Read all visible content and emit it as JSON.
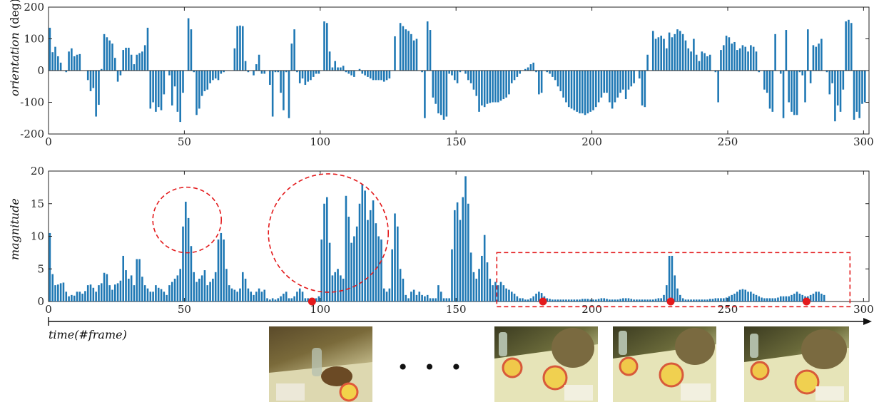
{
  "chart_data": [
    {
      "type": "bar",
      "ylabel_italic": "orientation",
      "ylabel_unit": "(deg)",
      "xlim": [
        0,
        302
      ],
      "ylim": [
        -200,
        200
      ],
      "xticks": [
        0,
        50,
        100,
        150,
        200,
        250,
        300
      ],
      "yticks": [
        -200,
        -100,
        0,
        100,
        200
      ],
      "bar_color": "#1f78b4",
      "values": [
        135,
        58,
        75,
        45,
        25,
        0,
        -5,
        60,
        70,
        45,
        50,
        52,
        0,
        0,
        -30,
        -65,
        -55,
        -145,
        -108,
        5,
        115,
        105,
        95,
        85,
        40,
        -35,
        -15,
        65,
        72,
        72,
        50,
        20,
        50,
        55,
        60,
        80,
        135,
        -120,
        -100,
        -130,
        -115,
        -125,
        -75,
        0,
        -15,
        -110,
        -50,
        -130,
        -162,
        -70,
        0,
        165,
        130,
        -5,
        -140,
        -120,
        -80,
        -65,
        -60,
        -40,
        -30,
        -25,
        -30,
        -10,
        -5,
        0,
        0,
        0,
        70,
        140,
        142,
        140,
        30,
        -5,
        0,
        -15,
        20,
        50,
        -10,
        -10,
        0,
        -45,
        -145,
        -5,
        -5,
        -70,
        -125,
        -5,
        -150,
        85,
        130,
        -5,
        -40,
        -25,
        -45,
        -35,
        -30,
        -20,
        -10,
        -10,
        0,
        155,
        150,
        60,
        10,
        30,
        10,
        10,
        15,
        -5,
        -10,
        -15,
        -20,
        0,
        5,
        -10,
        -15,
        -20,
        -25,
        -30,
        -30,
        -30,
        -30,
        -35,
        -30,
        -25,
        0,
        108,
        0,
        150,
        140,
        130,
        125,
        115,
        95,
        100,
        0,
        -5,
        -150,
        155,
        128,
        -85,
        -105,
        -135,
        -140,
        -155,
        -145,
        -10,
        -15,
        -30,
        -40,
        -5,
        0,
        -10,
        -30,
        -40,
        -60,
        -80,
        -130,
        -110,
        -115,
        -105,
        -102,
        -100,
        -100,
        -100,
        -95,
        -90,
        -85,
        -75,
        -40,
        -30,
        -20,
        -10,
        0,
        5,
        10,
        20,
        25,
        -5,
        -75,
        -70,
        0,
        -5,
        -10,
        -20,
        -30,
        -50,
        -65,
        -85,
        -100,
        -115,
        -120,
        -125,
        -130,
        -135,
        -135,
        -140,
        -135,
        -130,
        -125,
        -115,
        -100,
        -85,
        -70,
        -70,
        -100,
        -120,
        -100,
        -85,
        -70,
        -60,
        -90,
        -60,
        -50,
        -40,
        0,
        -25,
        -110,
        -115,
        50,
        0,
        125,
        100,
        105,
        110,
        100,
        70,
        120,
        105,
        115,
        130,
        125,
        115,
        95,
        70,
        60,
        100,
        50,
        30,
        60,
        55,
        45,
        50,
        0,
        -5,
        -100,
        65,
        80,
        110,
        105,
        85,
        90,
        65,
        70,
        80,
        75,
        60,
        80,
        75,
        60,
        -5,
        0,
        -60,
        -70,
        -120,
        -130,
        115,
        0,
        -10,
        -150,
        128,
        -100,
        -130,
        -140,
        -140,
        -5,
        -15,
        -100,
        130,
        -40,
        80,
        75,
        85,
        100,
        0,
        -5,
        -75,
        -40,
        -160,
        -110,
        -130,
        -60,
        155,
        160,
        150,
        -155,
        -130,
        -150,
        -105,
        -100
      ]
    },
    {
      "type": "bar",
      "ylabel_italic": "magnitude",
      "xlim": [
        0,
        302
      ],
      "ylim": [
        0,
        20
      ],
      "xticks": [
        0,
        50,
        100,
        150,
        200,
        250,
        300
      ],
      "yticks": [
        0,
        5,
        10,
        15,
        20
      ],
      "bar_color": "#1f78b4",
      "values": [
        10.5,
        4.2,
        2.5,
        2.6,
        2.8,
        2.9,
        1.5,
        0.8,
        1.0,
        0.9,
        1.5,
        1.5,
        1.2,
        1.6,
        2.5,
        2.6,
        2.1,
        1.5,
        2.5,
        2.8,
        4.4,
        4.2,
        2.5,
        1.8,
        2.6,
        2.8,
        3.2,
        7.0,
        4.8,
        3.5,
        4.0,
        2.5,
        6.5,
        6.5,
        3.8,
        2.5,
        2.0,
        1.5,
        1.5,
        2.5,
        2.1,
        1.9,
        1.5,
        1.0,
        2.5,
        3.0,
        3.5,
        4.0,
        5.0,
        11.5,
        15.3,
        12.8,
        8.5,
        4.5,
        3.0,
        3.5,
        4.0,
        4.8,
        2.5,
        3.0,
        3.5,
        4.5,
        9.5,
        10.5,
        9.5,
        5.0,
        2.5,
        2.0,
        1.8,
        1.5,
        2.0,
        4.5,
        3.5,
        2.0,
        1.5,
        1.0,
        1.5,
        2.0,
        1.5,
        1.8,
        0.5,
        0.3,
        0.5,
        0.3,
        0.5,
        0.8,
        1.2,
        1.5,
        0.5,
        0.5,
        0.8,
        1.5,
        2.0,
        1.5,
        0.5,
        0.5,
        0.3,
        0.5,
        0.5,
        0.8,
        9.5,
        15.0,
        16.0,
        9.0,
        4.0,
        4.5,
        5.0,
        4.0,
        3.5,
        16.2,
        13.0,
        9.0,
        10.0,
        11.5,
        15.0,
        18.0,
        17.0,
        12.5,
        14.0,
        15.5,
        12.0,
        10.0,
        9.5,
        2.0,
        1.5,
        2.0,
        8.0,
        13.5,
        11.5,
        5.0,
        3.5,
        1.0,
        0.5,
        1.5,
        1.8,
        1.0,
        1.5,
        1.0,
        0.8,
        1.0,
        0.5,
        0.5,
        0.5,
        2.5,
        1.5,
        0.5,
        0.5,
        0.5,
        8.0,
        14.0,
        15.2,
        12.5,
        16.0,
        19.2,
        15.0,
        7.5,
        4.5,
        3.5,
        5.0,
        7.0,
        10.2,
        6.0,
        3.5,
        2.5,
        3.0,
        2.5,
        3.0,
        2.5,
        2.0,
        1.8,
        1.5,
        1.2,
        0.8,
        0.5,
        0.5,
        0.3,
        0.3,
        0.5,
        0.8,
        1.2,
        1.5,
        1.3,
        0.8,
        0.5,
        0.4,
        0.3,
        0.3,
        0.3,
        0.3,
        0.3,
        0.3,
        0.3,
        0.3,
        0.3,
        0.3,
        0.3,
        0.4,
        0.4,
        0.4,
        0.3,
        0.3,
        0.3,
        0.4,
        0.5,
        0.5,
        0.4,
        0.3,
        0.3,
        0.3,
        0.3,
        0.4,
        0.5,
        0.5,
        0.5,
        0.4,
        0.3,
        0.3,
        0.3,
        0.3,
        0.3,
        0.3,
        0.3,
        0.3,
        0.4,
        0.5,
        0.5,
        1.0,
        2.5,
        7.0,
        7.0,
        4.0,
        2.0,
        1.0,
        0.5,
        0.3,
        0.3,
        0.3,
        0.3,
        0.3,
        0.3,
        0.3,
        0.3,
        0.3,
        0.4,
        0.4,
        0.5,
        0.5,
        0.5,
        0.5,
        0.6,
        0.8,
        1.0,
        1.2,
        1.5,
        1.8,
        1.9,
        1.8,
        1.5,
        1.5,
        1.2,
        1.0,
        0.8,
        0.6,
        0.5,
        0.5,
        0.5,
        0.5,
        0.5,
        0.6,
        0.8,
        0.8,
        0.8,
        0.8,
        1.0,
        1.2,
        1.5,
        1.2,
        1.0,
        0.8,
        0.8,
        1.0,
        1.2,
        1.5,
        1.5,
        1.2,
        1.0
      ]
    }
  ],
  "time_axis": {
    "label": "time(#frame)"
  },
  "ellipsis": "• • •",
  "markers": {
    "frames": [
      97,
      182,
      229,
      279
    ],
    "color": "#e31a1c"
  },
  "highlights": [
    {
      "shape": "circle",
      "center_frame": 51,
      "center_value": 12.5,
      "color": "#e31a1c"
    },
    {
      "shape": "circle",
      "center_frame": 103,
      "center_value": 10.5,
      "color": "#e31a1c"
    },
    {
      "shape": "rectangle",
      "frames": [
        165,
        295
      ],
      "values": [
        -0.8,
        7.5
      ],
      "color": "#e31a1c"
    }
  ],
  "frame_thumbnails": [
    {
      "frame": 97
    },
    {
      "frame": 182
    },
    {
      "frame": 229
    },
    {
      "frame": 279
    }
  ]
}
